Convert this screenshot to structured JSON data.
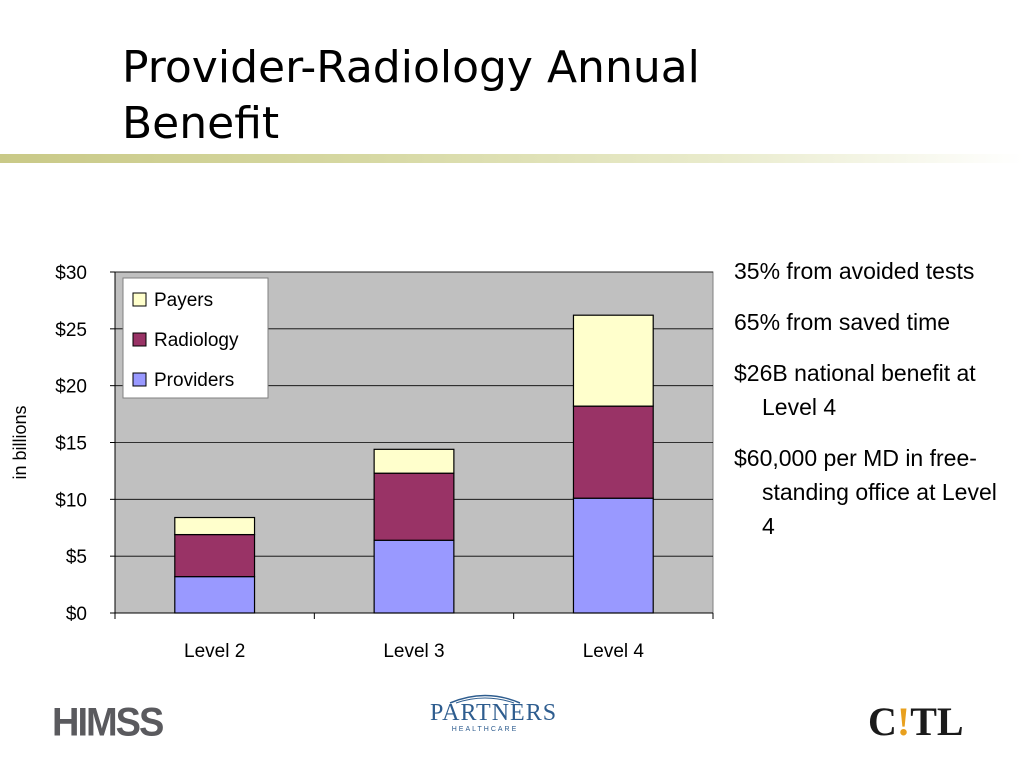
{
  "slide": {
    "title": "Provider-Radiology Annual Benefit",
    "bullets": [
      "35% from avoided tests",
      "65% from saved time",
      "$26B national benefit at Level 4",
      "$60,000 per MD in free-standing office at Level 4"
    ]
  },
  "logos": {
    "himss": "HIMSS",
    "partners": "PARTNERS",
    "partners_sub": "HEALTHCARE",
    "citl_left": "C",
    "citl_mark": "!",
    "citl_right": "TL"
  },
  "chart_data": {
    "type": "bar",
    "stacked": true,
    "categories": [
      "Level 2",
      "Level 3",
      "Level 4"
    ],
    "series": [
      {
        "name": "Providers",
        "color": "#9999ff",
        "values": [
          3.2,
          6.4,
          10.1
        ]
      },
      {
        "name": "Radiology",
        "color": "#993366",
        "values": [
          3.7,
          5.9,
          8.1
        ]
      },
      {
        "name": "Payers",
        "color": "#ffffcc",
        "values": [
          1.5,
          2.1,
          8.0
        ]
      }
    ],
    "ylabel": "in billions",
    "ylim": [
      0,
      30
    ],
    "yticks": [
      0,
      5,
      10,
      15,
      20,
      25,
      30
    ],
    "ytick_labels": [
      "$0",
      "$5",
      "$10",
      "$15",
      "$20",
      "$25",
      "$30"
    ],
    "grid": true,
    "plot_background": "#c0c0c0",
    "legend_position": "top-left",
    "legend_order": [
      "Payers",
      "Radiology",
      "Providers"
    ]
  }
}
